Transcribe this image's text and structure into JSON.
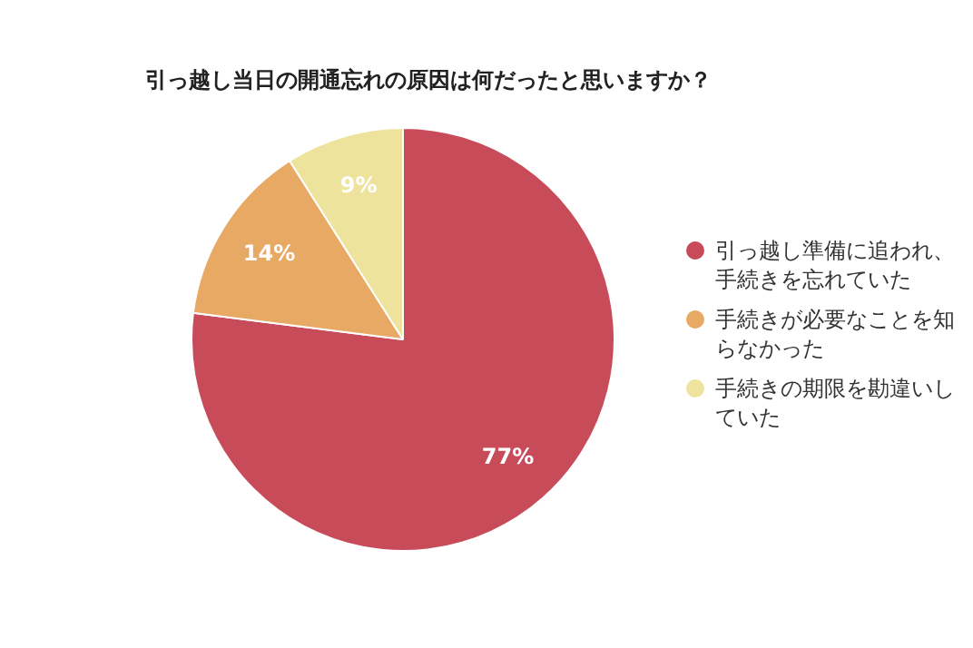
{
  "chart_data": {
    "type": "pie",
    "title": "引っ越し当日の開通忘れの原因は何だったと思いますか？",
    "categories": [
      "引っ越し準備に追われ、手続きを忘れていた",
      "手続きが必要なことを知らなかった",
      "手続きの期限を勘違いしていた"
    ],
    "values": [
      77,
      14,
      9
    ],
    "colors": [
      "#c84b5a",
      "#e8a964",
      "#ede39c"
    ],
    "value_labels": [
      "77%",
      "14%",
      "9%"
    ],
    "legend": "right"
  }
}
